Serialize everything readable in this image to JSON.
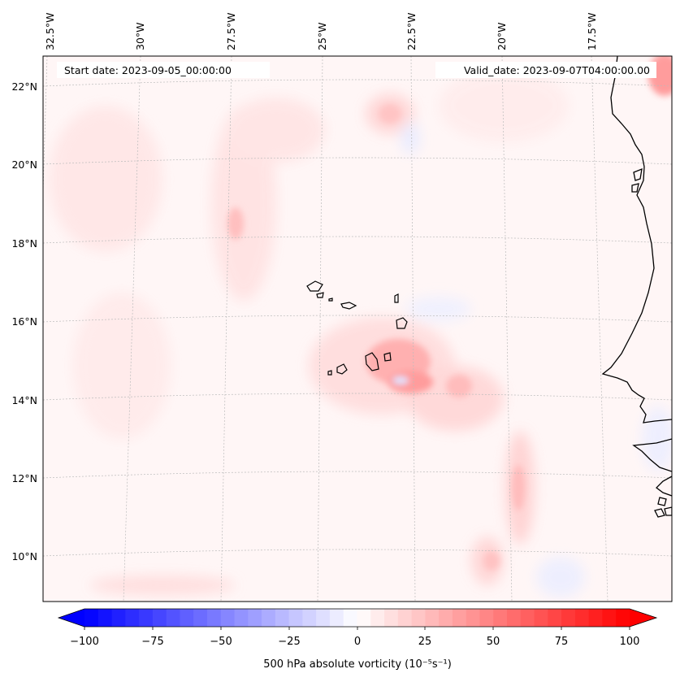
{
  "map": {
    "start_date": "Start date: 2023-09-05_00:00:00",
    "valid_date": "Valid_date: 2023-09-07T04:00:00.00",
    "lon_labels": [
      "32.5°W",
      "30°W",
      "27.5°W",
      "25°W",
      "22.5°W",
      "20°W",
      "17.5°W"
    ],
    "lat_labels": [
      "22°N",
      "20°N",
      "18°N",
      "16°N",
      "14°N",
      "12°N",
      "10°N"
    ],
    "variable": "500 hPa absolute vorticity",
    "units": "(10⁻⁵s⁻¹)"
  },
  "colorbar": {
    "ticks": [
      "−100",
      "−75",
      "−50",
      "−25",
      "0",
      "25",
      "50",
      "75",
      "100"
    ],
    "min": -100,
    "max": 100,
    "levels": 40,
    "extend": "both",
    "low_color": "#0000ff",
    "mid_color": "#ffffff",
    "high_color": "#ff0000"
  },
  "colors": {
    "coastline": "#000000",
    "gridline": "#bbbbbb"
  }
}
